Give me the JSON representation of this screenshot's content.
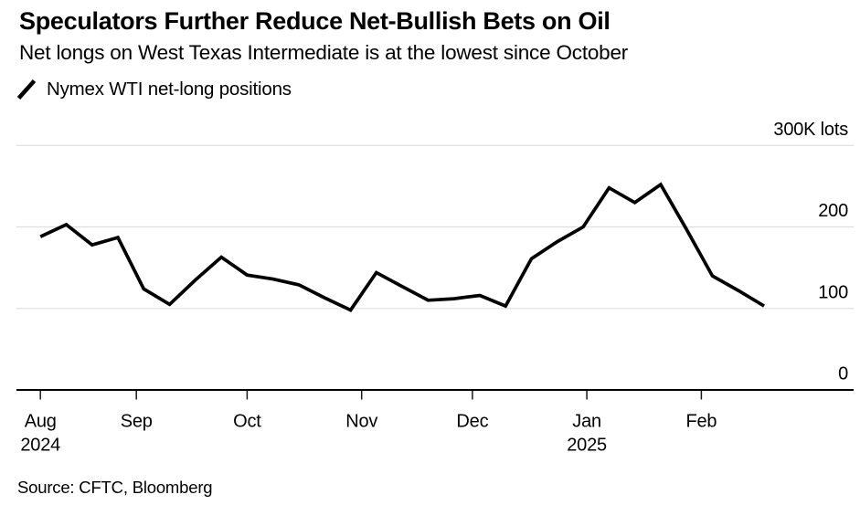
{
  "header": {
    "title": "Speculators Further Reduce Net-Bullish Bets on Oil",
    "subtitle": "Net longs on West Texas Intermediate is at the lowest since October"
  },
  "legend": {
    "icon": "diagonal-line-series-mark",
    "label": "Nymex WTI net-long positions"
  },
  "source_note": "Source: CFTC, Bloomberg",
  "colors": {
    "series_line": "#000000",
    "gridline": "#dedede",
    "axis_line": "#000000",
    "text": "#000000",
    "background": "#ffffff"
  },
  "chart_data": {
    "type": "line",
    "series_name": "Nymex WTI net-long positions",
    "unit": "K lots",
    "ylim": [
      0,
      300
    ],
    "grid": "horizontal-only",
    "legend_position": "top-left",
    "yticks": [
      {
        "value": 300,
        "label": "300K lots"
      },
      {
        "value": 200,
        "label": "200"
      },
      {
        "value": 100,
        "label": "100"
      },
      {
        "value": 0,
        "label": "0"
      }
    ],
    "xticks": [
      {
        "date": "2024-08-06",
        "label": "Aug",
        "year_label": "2024"
      },
      {
        "date": "2024-09-01",
        "label": "Sep"
      },
      {
        "date": "2024-10-01",
        "label": "Oct"
      },
      {
        "date": "2024-11-01",
        "label": "Nov"
      },
      {
        "date": "2024-12-01",
        "label": "Dec"
      },
      {
        "date": "2025-01-01",
        "label": "Jan",
        "year_label": "2025"
      },
      {
        "date": "2025-02-01",
        "label": "Feb"
      }
    ],
    "x_dates": [
      "2024-08-06",
      "2024-08-13",
      "2024-08-20",
      "2024-08-27",
      "2024-09-03",
      "2024-09-10",
      "2024-09-17",
      "2024-09-24",
      "2024-10-01",
      "2024-10-08",
      "2024-10-15",
      "2024-10-22",
      "2024-10-29",
      "2024-11-05",
      "2024-11-12",
      "2024-11-19",
      "2024-11-26",
      "2024-12-03",
      "2024-12-10",
      "2024-12-17",
      "2024-12-24",
      "2024-12-31",
      "2025-01-07",
      "2025-01-14",
      "2025-01-21",
      "2025-01-28",
      "2025-02-04",
      "2025-02-11",
      "2025-02-18"
    ],
    "values": [
      188,
      203,
      178,
      187,
      124,
      105,
      135,
      163,
      141,
      136,
      129,
      113,
      98,
      144,
      127,
      110,
      112,
      116,
      103,
      161,
      182,
      200,
      248,
      230,
      252,
      197,
      140,
      122,
      103
    ]
  }
}
